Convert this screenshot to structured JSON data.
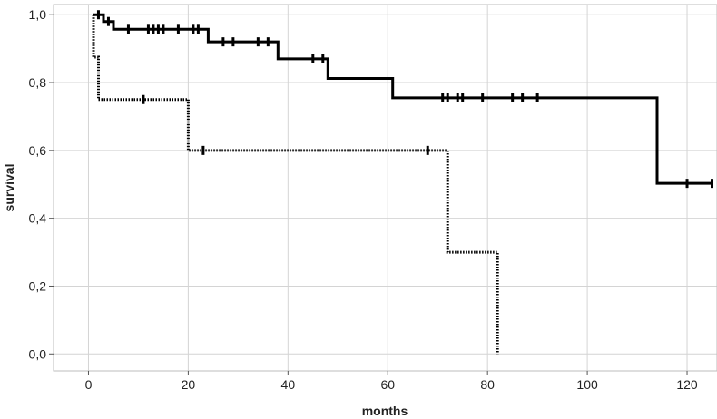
{
  "chart_data": {
    "type": "line",
    "subtype": "kaplan-meier step",
    "title": "",
    "xlabel": "months",
    "ylabel": "survival",
    "xlim": [
      -7,
      126
    ],
    "ylim": [
      -0.05,
      1.03
    ],
    "x_ticks": [
      0,
      20,
      40,
      60,
      80,
      100,
      120
    ],
    "x_tick_labels": [
      "0",
      "20",
      "40",
      "60",
      "80",
      "100",
      "120"
    ],
    "y_ticks": [
      0.0,
      0.2,
      0.4,
      0.6,
      0.8,
      1.0
    ],
    "y_tick_labels": [
      "0,0",
      "0,2",
      "0,4",
      "0,6",
      "0,8",
      "1,0"
    ],
    "grid": true,
    "legend": "none",
    "series": [
      {
        "style": "solid",
        "color": "#000000",
        "steps": [
          [
            1,
            1.0
          ],
          [
            3,
            0.98
          ],
          [
            5,
            0.957
          ],
          [
            24,
            0.92
          ],
          [
            38,
            0.87
          ],
          [
            48,
            0.812
          ],
          [
            61,
            0.755
          ],
          [
            114,
            0.503
          ],
          [
            125,
            0.503
          ]
        ],
        "censored": [
          [
            2,
            1.0
          ],
          [
            4,
            0.98
          ],
          [
            8,
            0.957
          ],
          [
            12,
            0.957
          ],
          [
            13,
            0.957
          ],
          [
            14,
            0.957
          ],
          [
            15,
            0.957
          ],
          [
            18,
            0.957
          ],
          [
            21,
            0.957
          ],
          [
            22,
            0.957
          ],
          [
            27,
            0.92
          ],
          [
            29,
            0.92
          ],
          [
            34,
            0.92
          ],
          [
            36,
            0.92
          ],
          [
            45,
            0.87
          ],
          [
            47,
            0.87
          ],
          [
            71,
            0.755
          ],
          [
            72,
            0.755
          ],
          [
            74,
            0.755
          ],
          [
            75,
            0.755
          ],
          [
            79,
            0.755
          ],
          [
            85,
            0.755
          ],
          [
            87,
            0.755
          ],
          [
            90,
            0.755
          ],
          [
            120,
            0.503
          ],
          [
            125,
            0.503
          ]
        ]
      },
      {
        "style": "dotted",
        "color": "#000000",
        "steps": [
          [
            1,
            1.0
          ],
          [
            1,
            0.875
          ],
          [
            2,
            0.75
          ],
          [
            20,
            0.6
          ],
          [
            72,
            0.3
          ],
          [
            82,
            0.0
          ]
        ],
        "censored": [
          [
            11,
            0.75
          ],
          [
            23,
            0.6
          ],
          [
            68,
            0.6
          ]
        ]
      }
    ]
  }
}
